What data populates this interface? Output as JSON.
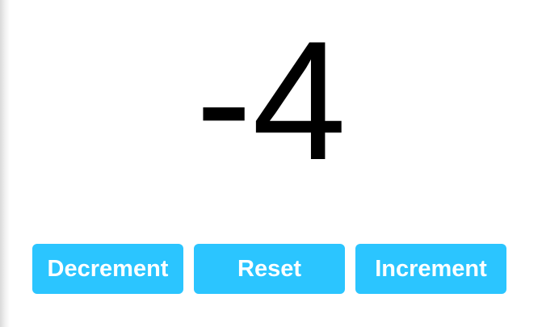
{
  "counter": {
    "value": "-4"
  },
  "buttons": {
    "decrement_label": "Decrement",
    "reset_label": "Reset",
    "increment_label": "Increment"
  },
  "colors": {
    "button_bg": "#2bc5ff",
    "button_text": "#ffffff",
    "counter_text": "#000000"
  }
}
